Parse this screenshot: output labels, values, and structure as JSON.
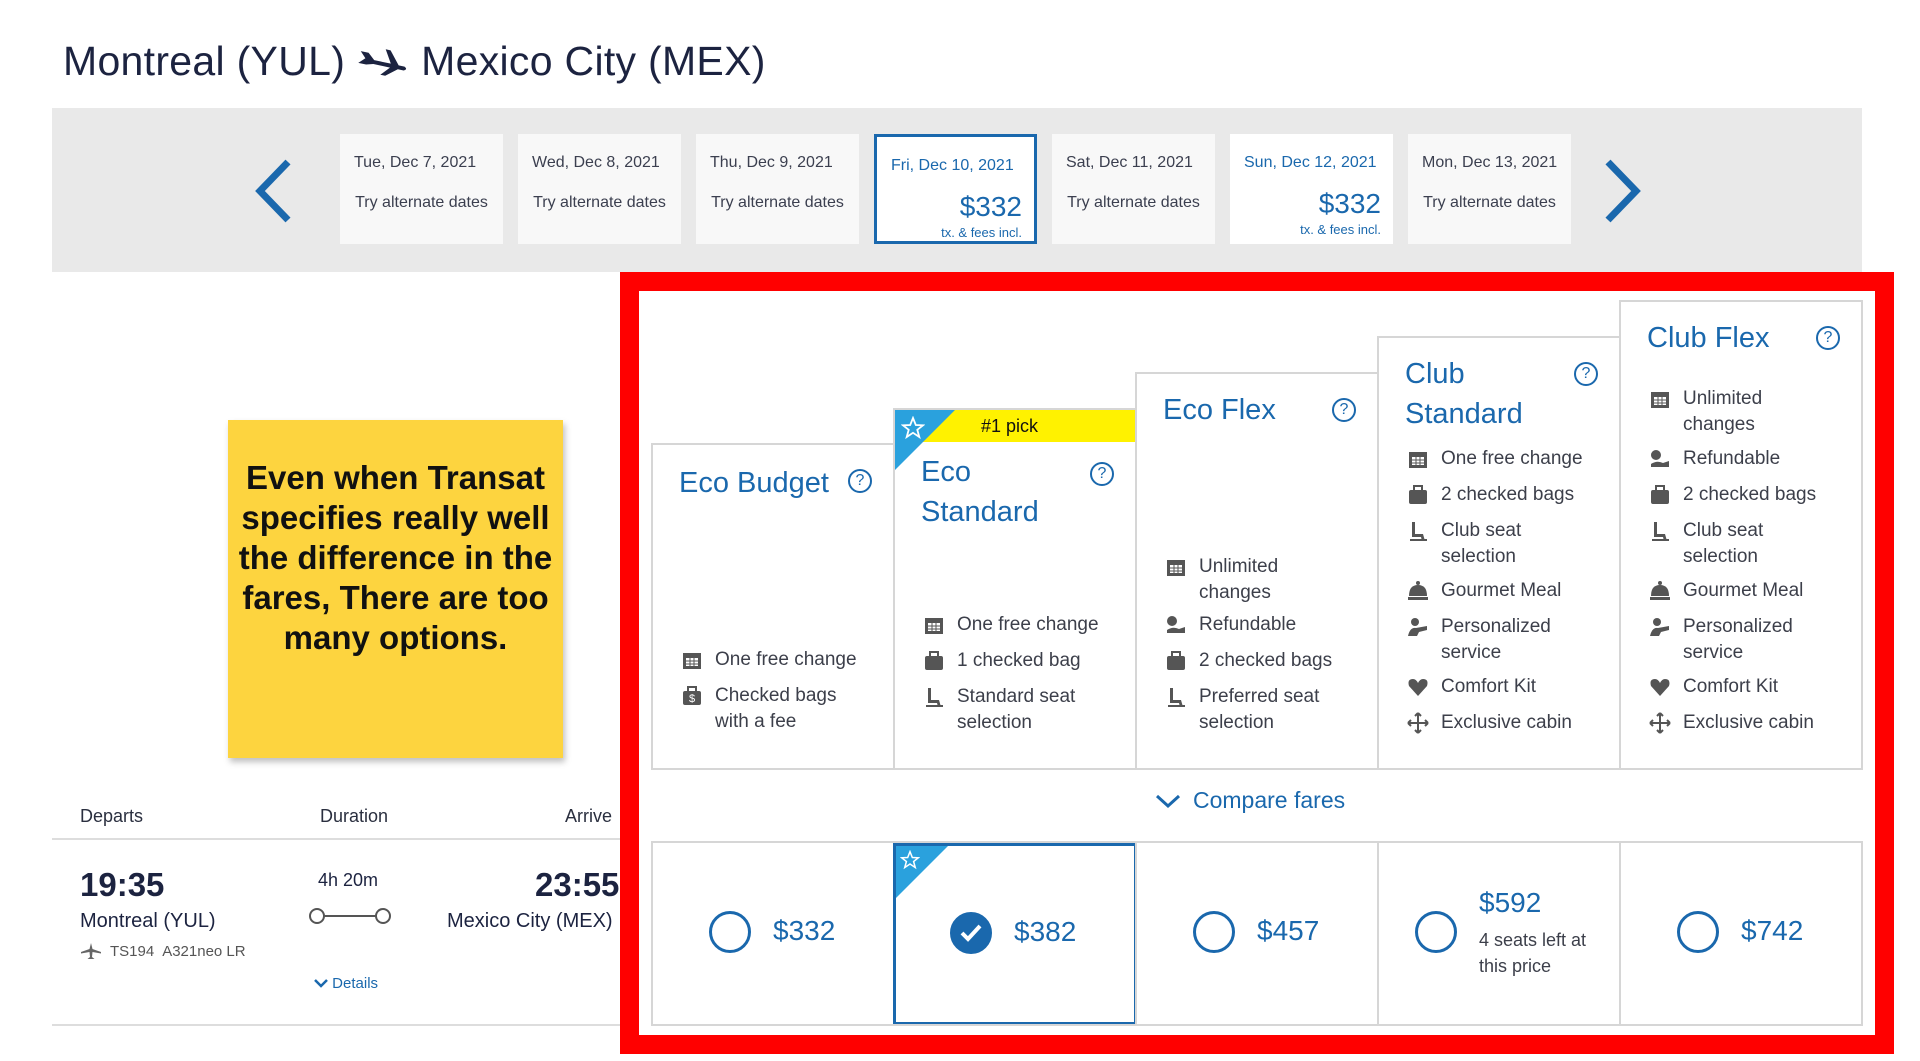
{
  "header": {
    "origin": "Montreal (YUL)",
    "destination": "Mexico City (MEX)"
  },
  "dates": [
    {
      "date": "Tue, Dec 7, 2021",
      "text": "Try alternate dates"
    },
    {
      "date": "Wed, Dec 8, 2021",
      "text": "Try alternate dates"
    },
    {
      "date": "Thu, Dec 9, 2021",
      "text": "Try alternate dates"
    },
    {
      "date": "Fri, Dec 10, 2021",
      "price": "$332",
      "fees": "tx. & fees incl."
    },
    {
      "date": "Sat, Dec 11, 2021",
      "text": "Try alternate dates"
    },
    {
      "date": "Sun, Dec 12, 2021",
      "price": "$332",
      "fees": "tx. & fees incl."
    },
    {
      "date": "Mon, Dec 13, 2021",
      "text": "Try alternate dates"
    }
  ],
  "note": "Even when Transat specifies really well the difference in the fares, There are too many options.",
  "flight": {
    "headers": {
      "departs": "Departs",
      "duration": "Duration",
      "arrives": "Arrive"
    },
    "dep_time": "19:35",
    "dep_city": "Montreal (YUL)",
    "flight_no": "TS194",
    "aircraft": "A321neo LR",
    "duration": "4h 20m",
    "arr_time": "23:55",
    "arr_city": "Mexico City (MEX)",
    "details": "Details"
  },
  "fares": [
    {
      "name": "Eco Budget",
      "features": [
        {
          "icon": "calendar-icon",
          "text": "One free change"
        },
        {
          "icon": "bag-fee-icon",
          "text": "Checked bags with a fee"
        }
      ]
    },
    {
      "name": "Eco Standard",
      "badge": "#1 pick",
      "features": [
        {
          "icon": "calendar-icon",
          "text": "One free change"
        },
        {
          "icon": "suitcase-icon",
          "text": "1 checked bag"
        },
        {
          "icon": "seat-icon",
          "text": "Standard seat selection"
        }
      ]
    },
    {
      "name": "Eco Flex",
      "features": [
        {
          "icon": "calendar-icon",
          "text": "Unlimited changes"
        },
        {
          "icon": "refund-icon",
          "text": "Refundable"
        },
        {
          "icon": "suitcase-icon",
          "text": "2 checked bags"
        },
        {
          "icon": "seat-icon",
          "text": "Preferred seat selection"
        }
      ]
    },
    {
      "name": "Club Standard",
      "features": [
        {
          "icon": "calendar-icon",
          "text": "One free change"
        },
        {
          "icon": "suitcase-icon",
          "text": "2 checked bags"
        },
        {
          "icon": "seat-icon",
          "text": "Club seat selection"
        },
        {
          "icon": "meal-icon",
          "text": "Gourmet Meal"
        },
        {
          "icon": "service-icon",
          "text": "Personalized service"
        },
        {
          "icon": "heart-icon",
          "text": "Comfort Kit"
        },
        {
          "icon": "cabin-icon",
          "text": "Exclusive cabin"
        }
      ]
    },
    {
      "name": "Club Flex",
      "features": [
        {
          "icon": "calendar-icon",
          "text": "Unlimited changes"
        },
        {
          "icon": "refund-icon",
          "text": "Refundable"
        },
        {
          "icon": "suitcase-icon",
          "text": "2 checked bags"
        },
        {
          "icon": "seat-icon",
          "text": "Club seat selection"
        },
        {
          "icon": "meal-icon",
          "text": "Gourmet Meal"
        },
        {
          "icon": "service-icon",
          "text": "Personalized service"
        },
        {
          "icon": "heart-icon",
          "text": "Comfort Kit"
        },
        {
          "icon": "cabin-icon",
          "text": "Exclusive cabin"
        }
      ]
    }
  ],
  "compare": "Compare fares",
  "prices": [
    {
      "price": "$332"
    },
    {
      "price": "$382",
      "selected": true
    },
    {
      "price": "$457"
    },
    {
      "price": "$592",
      "note": "4 seats left at this price"
    },
    {
      "price": "$742"
    }
  ],
  "colors": {
    "brand": "#1a68ad",
    "highlight": "#ff0000",
    "note": "#fdd43f",
    "badge": "#fff200"
  }
}
